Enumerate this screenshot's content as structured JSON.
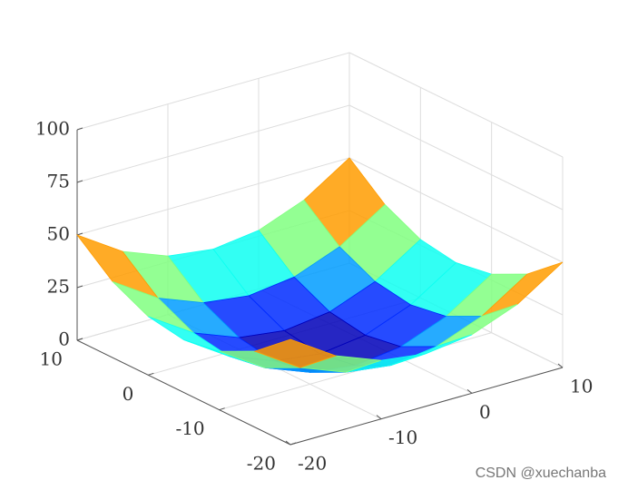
{
  "chart_data": {
    "type": "surface",
    "x": [
      -20,
      -15,
      -10,
      -5,
      0,
      5,
      10
    ],
    "y": [
      -20,
      -15,
      -10,
      -5,
      0,
      5,
      10
    ],
    "z": [
      [
        50,
        36.1,
        27.8,
        25,
        27.8,
        36.1,
        50
      ],
      [
        36.1,
        22.2,
        13.9,
        11.1,
        13.9,
        22.2,
        36.1
      ],
      [
        27.8,
        13.9,
        5.6,
        2.8,
        5.6,
        13.9,
        27.8
      ],
      [
        25,
        11.1,
        2.8,
        0,
        2.8,
        11.1,
        25
      ],
      [
        27.8,
        13.9,
        5.6,
        2.8,
        5.6,
        13.9,
        27.8
      ],
      [
        36.1,
        22.2,
        13.9,
        11.1,
        13.9,
        22.2,
        36.1
      ],
      [
        50,
        36.1,
        27.8,
        25,
        27.8,
        36.1,
        50
      ]
    ],
    "xlim": [
      -20,
      10
    ],
    "ylim": [
      -20,
      10
    ],
    "zlim": [
      0,
      100
    ],
    "xticks": [
      -20,
      -10,
      0,
      10
    ],
    "yticks": [
      -20,
      -10,
      0,
      10
    ],
    "zticks": [
      0,
      25,
      50,
      75,
      100
    ],
    "colormap": "jet",
    "grid": true
  },
  "watermark": "CSDN @xuechanba"
}
